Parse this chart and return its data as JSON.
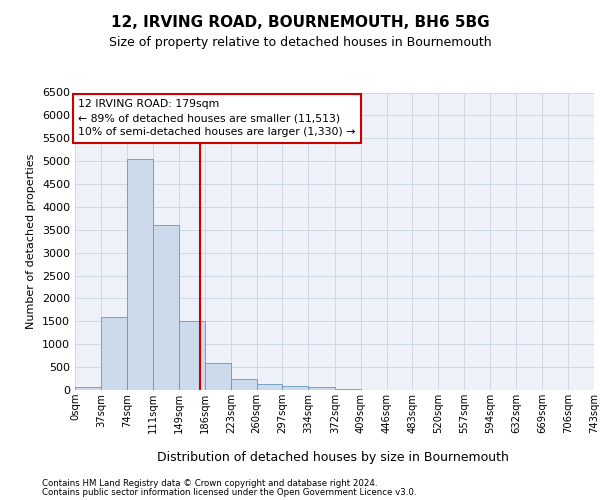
{
  "title": "12, IRVING ROAD, BOURNEMOUTH, BH6 5BG",
  "subtitle": "Size of property relative to detached houses in Bournemouth",
  "xlabel": "Distribution of detached houses by size in Bournemouth",
  "ylabel": "Number of detached properties",
  "footnote1": "Contains HM Land Registry data © Crown copyright and database right 2024.",
  "footnote2": "Contains public sector information licensed under the Open Government Licence v3.0.",
  "annotation_title": "12 IRVING ROAD: 179sqm",
  "annotation_line1": "← 89% of detached houses are smaller (11,513)",
  "annotation_line2": "10% of semi-detached houses are larger (1,330) →",
  "property_size": 179,
  "bin_edges": [
    0,
    37,
    74,
    111,
    149,
    186,
    223,
    260,
    297,
    334,
    372,
    409,
    446,
    483,
    520,
    557,
    594,
    632,
    669,
    706,
    743
  ],
  "bin_labels": [
    "0sqm",
    "37sqm",
    "74sqm",
    "111sqm",
    "149sqm",
    "186sqm",
    "223sqm",
    "260sqm",
    "297sqm",
    "334sqm",
    "372sqm",
    "409sqm",
    "446sqm",
    "483sqm",
    "520sqm",
    "557sqm",
    "594sqm",
    "632sqm",
    "669sqm",
    "706sqm",
    "743sqm"
  ],
  "bar_heights": [
    55,
    1600,
    5050,
    3600,
    1500,
    600,
    250,
    130,
    80,
    60,
    20,
    5,
    0,
    0,
    0,
    0,
    0,
    0,
    0,
    0
  ],
  "bar_color": "#cddaeb",
  "bar_edge_color": "#6699bb",
  "vline_x": 179,
  "vline_color": "#cc0000",
  "annotation_box_color": "#cc0000",
  "grid_color": "#ccd8e8",
  "background_color": "#eef2f8",
  "ylim": [
    0,
    6500
  ],
  "yticks": [
    0,
    500,
    1000,
    1500,
    2000,
    2500,
    3000,
    3500,
    4000,
    4500,
    5000,
    5500,
    6000,
    6500
  ],
  "title_fontsize": 11,
  "subtitle_fontsize": 9
}
